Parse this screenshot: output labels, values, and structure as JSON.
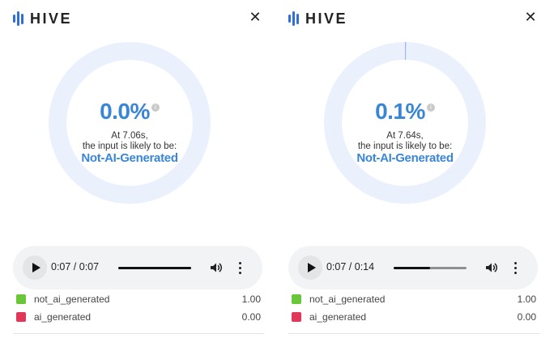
{
  "panels": [
    {
      "brand": "HIVE",
      "close_glyph": "✕",
      "percent": "0.0%",
      "score_fraction": 0.0,
      "time_line": "At 7.06s,",
      "likely_line": "the input is likely to be:",
      "verdict": "Not-AI-Generated",
      "player": {
        "time": "0:07 / 0:07",
        "progress": 1.0
      },
      "results": [
        {
          "label": "not_ai_generated",
          "value": "1.00",
          "color": "#6bc73a"
        },
        {
          "label": "ai_generated",
          "value": "0.00",
          "color": "#e0375a"
        }
      ]
    },
    {
      "brand": "HIVE",
      "close_glyph": "✕",
      "percent": "0.1%",
      "score_fraction": 0.001,
      "time_line": "At 7.64s,",
      "likely_line": "the input is likely to be:",
      "verdict": "Not-AI-Generated",
      "player": {
        "time": "0:07 / 0:14",
        "progress": 0.5
      },
      "results": [
        {
          "label": "not_ai_generated",
          "value": "1.00",
          "color": "#6bc73a"
        },
        {
          "label": "ai_generated",
          "value": "0.00",
          "color": "#e0375a"
        }
      ]
    }
  ],
  "colors": {
    "accent": "#3a86d6",
    "ring_track": "#eaf1fd",
    "ring_fill": "#9bb8e3",
    "logo": "#2f6fd6"
  },
  "icons": [
    "hive-logo-icon",
    "close-icon",
    "info-icon",
    "play-icon",
    "volume-icon",
    "more-options-icon"
  ]
}
